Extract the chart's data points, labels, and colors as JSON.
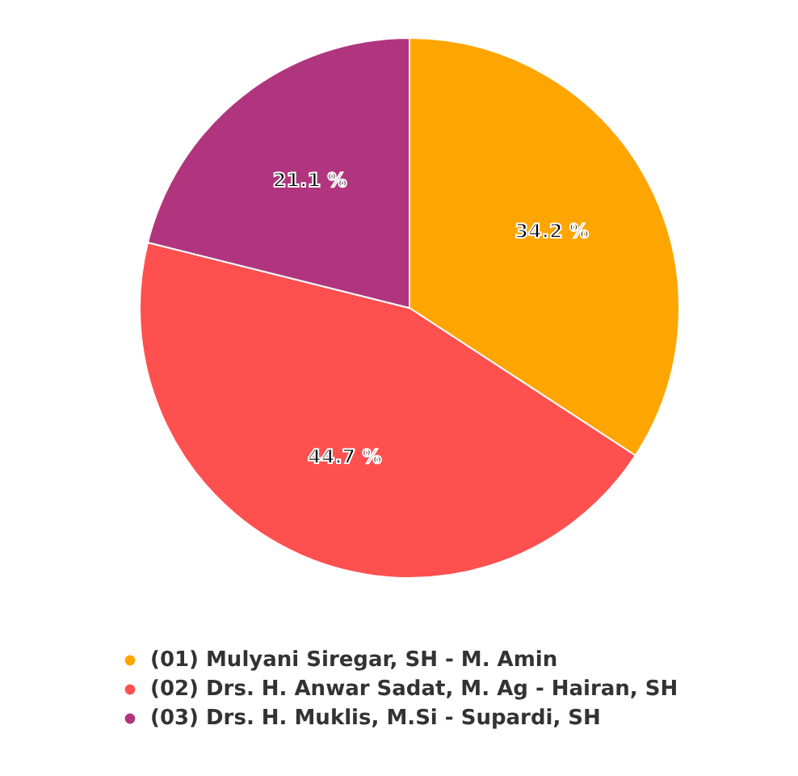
{
  "chart_data": {
    "type": "pie",
    "categories": [
      "(01) Mulyani Siregar, SH - M. Amin",
      "(02) Drs. H. Anwar Sadat, M. Ag - Hairan, SH",
      "(03) Drs. H. Muklis, M.Si - Supardi, SH"
    ],
    "values": [
      34.2,
      44.7,
      21.1
    ],
    "colors": [
      "#ffa500",
      "#ff5050",
      "#b0357e"
    ],
    "value_labels": [
      "34.2 %",
      "44.7 %",
      "21.1 %"
    ],
    "legend": "bottom"
  }
}
